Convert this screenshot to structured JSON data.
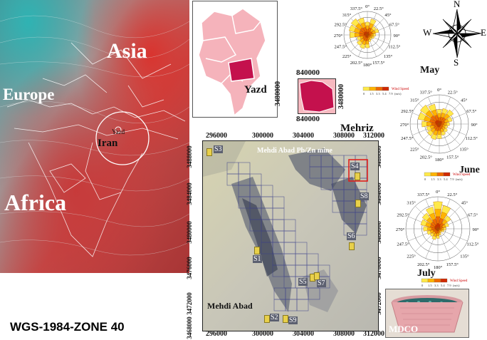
{
  "world_map": {
    "labels": {
      "asia": "Asia",
      "europe": "Europe",
      "africa": "Africa",
      "iran": "Iran",
      "yazd": "Yazd"
    }
  },
  "province_map": {
    "label": "Yazd"
  },
  "mehriz_inset": {
    "x_tick": "840000",
    "y_tick_left": "3480000",
    "y_tick_right": "3480000",
    "x_tick_bottom": "840000",
    "label": "Mehriz"
  },
  "study_map": {
    "top_ticks": [
      "296000",
      "300000",
      "304000",
      "308000",
      "312000"
    ],
    "bottom_ticks": [
      "296000",
      "300000",
      "304000",
      "308000",
      "312000"
    ],
    "left_ticks": [
      "3488000",
      "3484000",
      "3480000",
      "3476000",
      "3472000",
      "3468000"
    ],
    "right_ticks": [
      "3488000",
      "3484000",
      "3480000",
      "3476000",
      "3472000"
    ],
    "mine_label": "Mehdi Abad  Pb/Zn mine",
    "town_label": "Mehdi Abad",
    "sites": [
      {
        "id": "S3",
        "label": "S3"
      },
      {
        "id": "S4",
        "label": "S4"
      },
      {
        "id": "S8",
        "label": "S8"
      },
      {
        "id": "S6",
        "label": "S6"
      },
      {
        "id": "S1",
        "label": "S1"
      },
      {
        "id": "S5",
        "label": "S5"
      },
      {
        "id": "S7",
        "label": "S7"
      },
      {
        "id": "S2",
        "label": "S2"
      },
      {
        "id": "S9",
        "label": "S9"
      }
    ]
  },
  "wind_roses": {
    "directions": [
      "0°",
      "22.5°",
      "45°",
      "67.5°",
      "90°",
      "112.5°",
      "135°",
      "157.5°",
      "180°",
      "202.5°",
      "225°",
      "247.5°",
      "270°",
      "292.5°",
      "315°",
      "337.5°"
    ],
    "legend_title": "Wind Speed",
    "legend_unit": "(m/s)",
    "legend_values": [
      "0",
      "1.5",
      "3.3",
      "5.4",
      "7.9"
    ],
    "months": [
      {
        "name": "May",
        "petals": [
          0.55,
          0.7,
          0.45,
          0.5,
          0.35,
          0.3,
          0.25,
          0.3,
          0.55,
          0.6,
          0.55,
          0.45,
          0.75,
          0.8,
          0.85,
          0.75
        ]
      },
      {
        "name": "June",
        "petals": [
          0.5,
          0.55,
          0.6,
          0.45,
          0.35,
          0.3,
          0.35,
          0.4,
          0.5,
          0.55,
          0.5,
          0.45,
          0.6,
          0.75,
          0.8,
          0.7
        ]
      },
      {
        "name": "July",
        "petals": [
          0.85,
          0.75,
          0.5,
          0.35,
          0.25,
          0.2,
          0.15,
          0.2,
          0.3,
          0.35,
          0.3,
          0.35,
          0.45,
          0.55,
          0.6,
          0.7
        ]
      }
    ],
    "colors": [
      "#ffe94a",
      "#ffb400",
      "#f06a00",
      "#d02a00"
    ]
  },
  "compass": {
    "n": "N",
    "s": "S",
    "e": "E",
    "w": "W"
  },
  "projection": "WGS-1984-ZONE 40",
  "sampler_photo": {
    "label": "MDCO"
  }
}
